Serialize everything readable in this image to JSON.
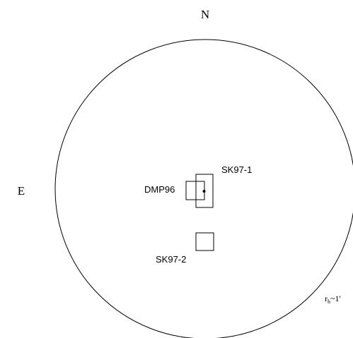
{
  "compass": {
    "north": "N",
    "east": "E"
  },
  "regions": [
    {
      "label": "SK97-1"
    },
    {
      "label": "DMP96"
    },
    {
      "label": "SK97-2"
    }
  ],
  "radius_label": {
    "symbol": "r",
    "subscript": "h",
    "value": "~1'"
  }
}
